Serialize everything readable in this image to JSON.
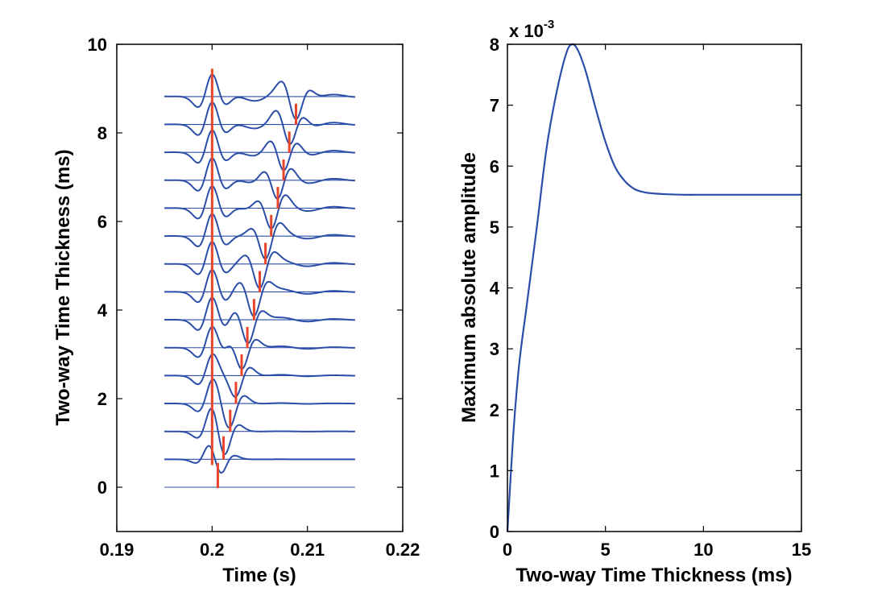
{
  "chart_data": [
    {
      "type": "line",
      "xlabel": "Time (s)",
      "ylabel": "Two-way Time Thickness (ms)",
      "xlim": [
        0.19,
        0.22
      ],
      "ylim": [
        -1,
        10
      ],
      "xticks": [
        0.19,
        0.2,
        0.21,
        0.22
      ],
      "xtick_labels": [
        "0.19",
        "0.2",
        "0.21",
        "0.22"
      ],
      "yticks": [
        0,
        2,
        4,
        6,
        8,
        10
      ],
      "ytick_labels": [
        "0",
        "2",
        "4",
        "6",
        "8",
        "10"
      ],
      "grid": false,
      "trace_time_range": [
        0.195,
        0.215
      ],
      "trace_baselines": [
        0,
        0.63,
        1.26,
        1.89,
        2.52,
        3.15,
        3.78,
        4.41,
        5.04,
        5.67,
        6.3,
        6.93,
        7.56,
        8.19,
        8.82
      ],
      "trace_color": "#2b4ea8",
      "marker_color": "#e8452a",
      "reference_marker": {
        "time": 0.2,
        "y_range": [
          0.5,
          9.45
        ]
      },
      "trough_markers": [
        {
          "time": 0.2006,
          "y_range": [
            -0.02,
            0.55
          ]
        },
        {
          "time": 0.2012,
          "y_range": [
            0.62,
            1.15
          ]
        },
        {
          "time": 0.2019,
          "y_range": [
            1.25,
            1.75
          ]
        },
        {
          "time": 0.2025,
          "y_range": [
            1.88,
            2.38
          ]
        },
        {
          "time": 0.2031,
          "y_range": [
            2.51,
            3.0
          ]
        },
        {
          "time": 0.2037,
          "y_range": [
            3.14,
            3.62
          ]
        },
        {
          "time": 0.2044,
          "y_range": [
            3.77,
            4.25
          ]
        },
        {
          "time": 0.205,
          "y_range": [
            4.4,
            4.88
          ]
        },
        {
          "time": 0.2056,
          "y_range": [
            5.03,
            5.52
          ]
        },
        {
          "time": 0.2062,
          "y_range": [
            5.66,
            6.15
          ]
        },
        {
          "time": 0.2069,
          "y_range": [
            6.29,
            6.78
          ]
        },
        {
          "time": 0.2075,
          "y_range": [
            6.92,
            7.4
          ]
        },
        {
          "time": 0.2081,
          "y_range": [
            7.55,
            8.03
          ]
        },
        {
          "time": 0.2088,
          "y_range": [
            8.18,
            8.66
          ]
        }
      ]
    },
    {
      "type": "line",
      "xlabel": "Two-way Time Thickness (ms)",
      "ylabel": "Maximum absolute amplitude",
      "xlim": [
        0,
        15
      ],
      "ylim": [
        0,
        8
      ],
      "xticks": [
        0,
        5,
        10,
        15
      ],
      "xtick_labels": [
        "0",
        "5",
        "10",
        "15"
      ],
      "yticks": [
        0,
        1,
        2,
        3,
        4,
        5,
        6,
        7,
        8
      ],
      "ytick_labels": [
        "0",
        "1",
        "2",
        "3",
        "4",
        "5",
        "6",
        "7",
        "8"
      ],
      "y_multiplier": "x 10",
      "y_multiplier_exponent": "-3",
      "grid": false,
      "series_color": "#2b4ea8",
      "x": [
        0,
        0.3,
        0.6,
        1.0,
        1.5,
        2.0,
        2.5,
        3.0,
        3.3,
        3.6,
        4.0,
        4.5,
        5.0,
        5.5,
        6.0,
        6.5,
        7.0,
        7.5,
        8.0,
        9.0,
        10.0,
        12.0,
        15.0
      ],
      "y": [
        0,
        1.6,
        2.75,
        3.75,
        5.0,
        6.3,
        7.2,
        7.85,
        8.0,
        7.9,
        7.55,
        6.95,
        6.4,
        5.98,
        5.75,
        5.62,
        5.57,
        5.55,
        5.54,
        5.53,
        5.53,
        5.53,
        5.53
      ]
    }
  ]
}
